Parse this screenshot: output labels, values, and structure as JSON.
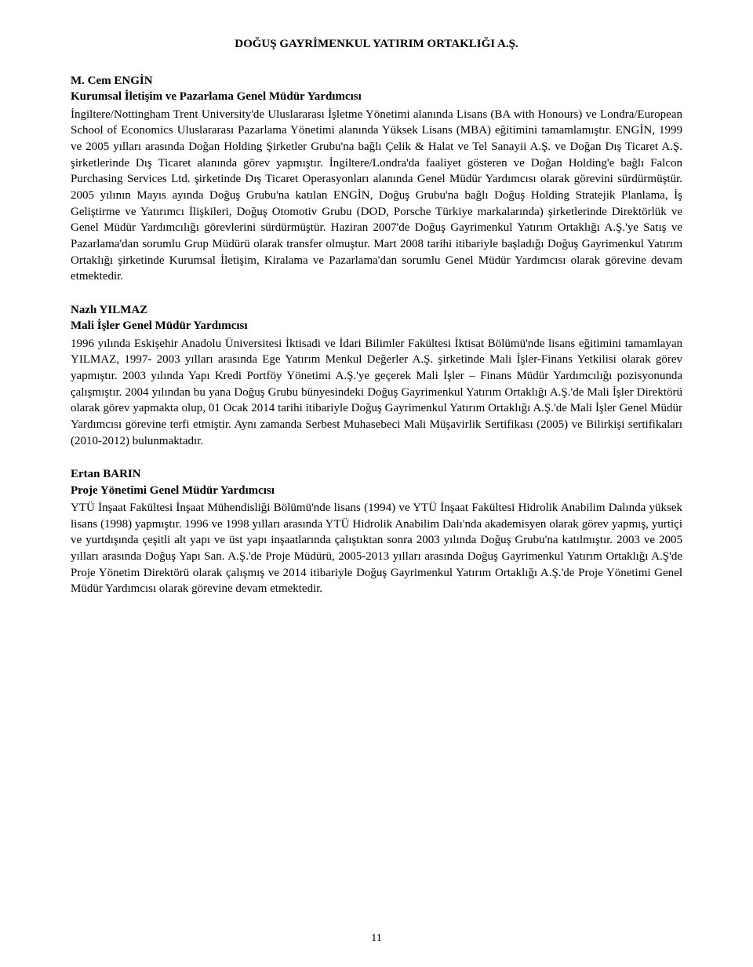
{
  "document": {
    "header": "DOĞUŞ GAYRİMENKUL YATIRIM ORTAKLIĞI A.Ş.",
    "page_number": "11",
    "sections": [
      {
        "name": "M. Cem ENGİN",
        "role": "Kurumsal İletişim ve Pazarlama Genel Müdür Yardımcısı",
        "body": "İngiltere/Nottingham Trent University'de Uluslararası İşletme Yönetimi alanında Lisans (BA with Honours) ve Londra/European School of Economics Uluslararası Pazarlama Yönetimi alanında Yüksek Lisans (MBA) eğitimini tamamlamıştır. ENGİN, 1999 ve 2005 yılları arasında Doğan Holding Şirketler Grubu'na bağlı Çelik & Halat ve Tel Sanayii A.Ş. ve Doğan Dış Ticaret A.Ş. şirketlerinde Dış Ticaret alanında görev yapmıştır. İngiltere/Londra'da faaliyet gösteren ve Doğan Holding'e bağlı Falcon Purchasing Services Ltd. şirketinde Dış Ticaret Operasyonları alanında Genel Müdür Yardımcısı olarak görevini sürdürmüştür. 2005 yılının Mayıs ayında Doğuş Grubu'na katılan ENGİN, Doğuş Grubu'na bağlı Doğuş Holding Stratejik Planlama, İş Geliştirme ve Yatırımcı İlişkileri, Doğuş Otomotiv Grubu (DOD, Porsche Türkiye markalarında) şirketlerinde Direktörlük ve Genel Müdür Yardımcılığı görevlerini sürdürmüştür. Haziran 2007'de Doğuş Gayrimenkul Yatırım Ortaklığı A.Ş.'ye Satış ve Pazarlama'dan sorumlu Grup Müdürü olarak transfer olmuştur. Mart 2008 tarihi itibariyle başladığı Doğuş Gayrimenkul Yatırım Ortaklığı şirketinde Kurumsal İletişim, Kiralama ve Pazarlama'dan sorumlu Genel Müdür Yardımcısı olarak görevine devam etmektedir."
      },
      {
        "name": "Nazlı YILMAZ",
        "role": "Mali İşler Genel Müdür Yardımcısı",
        "body": "1996 yılında Eskişehir Anadolu Üniversitesi İktisadi ve İdari Bilimler Fakültesi İktisat Bölümü'nde lisans eğitimini tamamlayan YILMAZ, 1997- 2003 yılları arasında Ege Yatırım Menkul Değerler A.Ş. şirketinde Mali İşler-Finans Yetkilisi olarak görev yapmıştır. 2003 yılında Yapı Kredi Portföy Yönetimi A.Ş.'ye geçerek Mali İşler – Finans Müdür Yardımcılığı pozisyonunda çalışmıştır. 2004 yılından bu yana Doğuş Grubu bünyesindeki Doğuş Gayrimenkul Yatırım Ortaklığı A.Ş.'de Mali İşler Direktörü olarak görev yapmakta olup, 01 Ocak 2014 tarihi itibariyle Doğuş Gayrimenkul Yatırım Ortaklığı A.Ş.'de Mali İşler Genel Müdür Yardımcısı görevine terfi etmiştir. Aynı zamanda Serbest Muhasebeci Mali Müşavirlik Sertifikası (2005) ve Bilirkişi sertifikaları (2010-2012) bulunmaktadır."
      },
      {
        "name": "Ertan BARIN",
        "role": "Proje Yönetimi Genel Müdür Yardımcısı",
        "body": "YTÜ İnşaat Fakültesi İnşaat Mühendisliği Bölümü'nde lisans (1994) ve YTÜ İnşaat Fakültesi Hidrolik Anabilim Dalında yüksek lisans (1998) yapmıştır. 1996 ve 1998 yılları arasında YTÜ Hidrolik Anabilim Dalı'nda akademisyen olarak görev yapmış, yurtiçi ve yurtdışında çeşitli alt yapı ve üst yapı inşaatlarında çalıştıktan sonra 2003 yılında Doğuş Grubu'na katılmıştır. 2003 ve 2005 yılları arasında Doğuş Yapı San. A.Ş.'de Proje Müdürü, 2005-2013 yılları arasında Doğuş Gayrimenkul Yatırım Ortaklığı A.Ş'de Proje Yönetim Direktörü olarak çalışmış ve 2014 itibariyle Doğuş Gayrimenkul Yatırım Ortaklığı A.Ş.'de Proje Yönetimi Genel Müdür Yardımcısı olarak görevine devam etmektedir."
      }
    ]
  }
}
